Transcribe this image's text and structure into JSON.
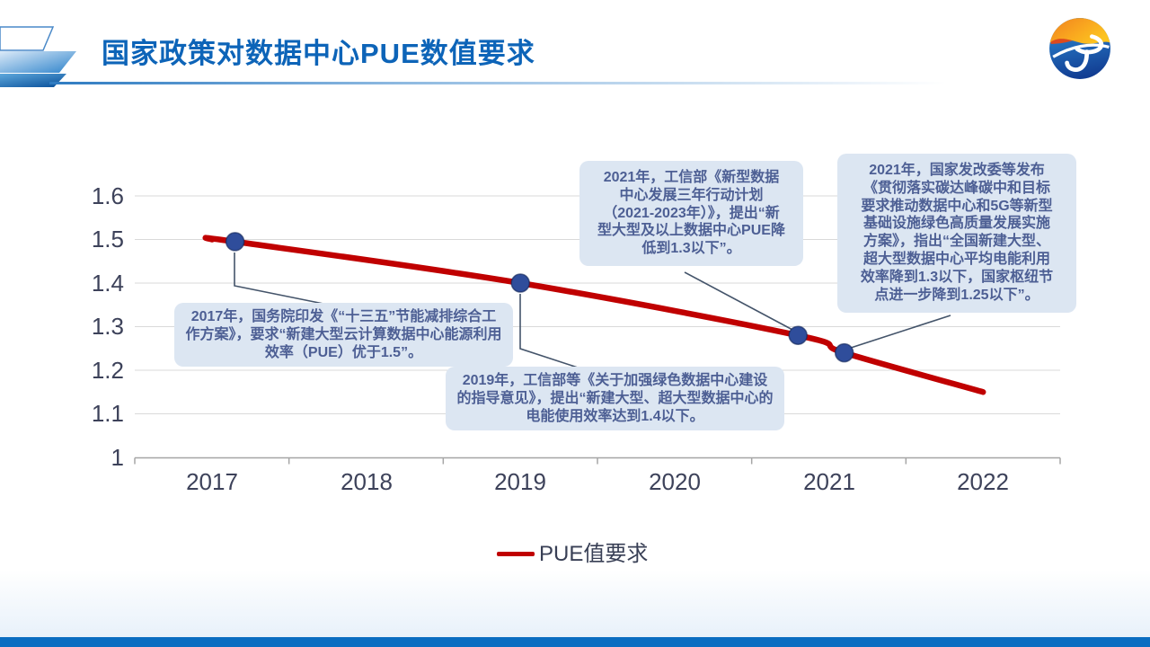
{
  "slide": {
    "title": "国家政策对数据中心PUE数值要求"
  },
  "chart_data": {
    "type": "line",
    "title": "",
    "xlabel": "",
    "ylabel": "",
    "x_ticks": [
      "2017",
      "2018",
      "2019",
      "2020",
      "2021",
      "2022"
    ],
    "y_ticks": [
      "1.6",
      "1.5",
      "1.4",
      "1.3",
      "1.2",
      "1.1",
      "1"
    ],
    "xlim": [
      2016.5,
      2022.5
    ],
    "ylim": [
      1.0,
      1.6
    ],
    "grid": "horizontal",
    "legend": {
      "label": "PUE值要求",
      "position": "bottom"
    },
    "line_color": "#c00000",
    "marker_color": "#2f4d9b",
    "series": [
      {
        "name": "PUE值要求",
        "points": [
          {
            "x": 2017.0,
            "y": 1.5,
            "marker": false
          },
          {
            "x": 2017.15,
            "y": 1.495,
            "marker": true
          },
          {
            "x": 2019.0,
            "y": 1.4,
            "marker": true
          },
          {
            "x": 2020.8,
            "y": 1.28,
            "marker": true
          },
          {
            "x": 2021.1,
            "y": 1.24,
            "marker": true
          },
          {
            "x": 2022.0,
            "y": 1.15,
            "marker": false
          }
        ]
      }
    ]
  },
  "annotations": [
    "2017年，国务院印发《“十三五”节能减排综合工作方案》，要求“新建大型云计算数据中心能源利用效率（PUE）优于1.5”。",
    "2019年，工信部等《关于加强绿色数据中心建设的指导意见》，提出“新建大型、超大型数据中心的电能使用效率达到1.4以下。",
    "2021年，工信部《新型数据中心发展三年行动计划（2021-2023年）》，提出“新型大型及以上数据中心PUE降低到1.3以下”。",
    "2021年，国家发改委等发布《贯彻落实碳达峰碳中和目标要求推动数据中心和5G等新型基础设施绿色高质量发展实施方案》，指出“全国新建大型、超大型数据中心平均电能利用效率降到1.3以下，国家枢纽节点进一步降到1.25以下”。"
  ]
}
